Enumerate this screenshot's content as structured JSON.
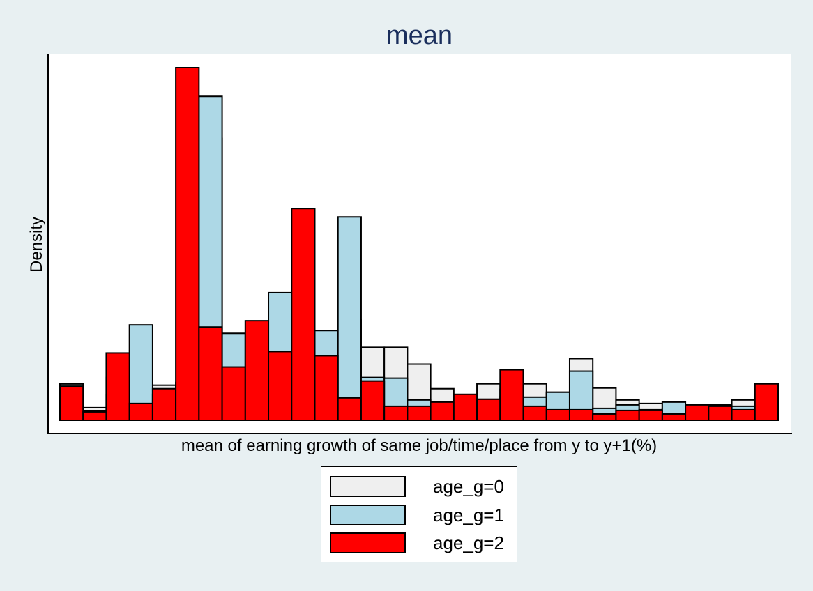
{
  "chart_data": {
    "type": "bar",
    "title": "mean",
    "xlabel": "mean of earning growth of same job/time/place from y to y+1(%)",
    "ylabel": "Density",
    "bins": 31,
    "ylim": [
      0,
      1
    ],
    "grid": false,
    "legend_position": "bottom",
    "series": [
      {
        "name": "age_g=0",
        "color": "#efefef",
        "values": [
          0.104,
          0.036,
          0.072,
          0.072,
          0.1,
          0.09,
          0.804,
          0.204,
          0.128,
          0.134,
          0.168,
          0.116,
          0.286,
          0.208,
          0.208,
          0.16,
          0.09,
          0.068,
          0.104,
          0.088,
          0.104,
          0.08,
          0.176,
          0.092,
          0.058,
          0.048,
          0.032,
          0.034,
          0.044,
          0.058,
          0.08
        ]
      },
      {
        "name": "age_g=1",
        "color": "#add8e6",
        "values": [
          0.1,
          0.026,
          0.122,
          0.272,
          0.074,
          0.108,
          0.924,
          0.248,
          0.144,
          0.364,
          0.238,
          0.256,
          0.58,
          0.122,
          0.12,
          0.058,
          0.038,
          0.072,
          0.06,
          0.068,
          0.066,
          0.08,
          0.14,
          0.034,
          0.044,
          0.03,
          0.052,
          0.032,
          0.042,
          0.04,
          0.076
        ]
      },
      {
        "name": "age_g=2",
        "color": "#ff0000",
        "values": [
          0.096,
          0.024,
          0.192,
          0.048,
          0.09,
          1.006,
          0.266,
          0.152,
          0.284,
          0.196,
          0.604,
          0.184,
          0.064,
          0.112,
          0.04,
          0.04,
          0.052,
          0.074,
          0.06,
          0.144,
          0.04,
          0.03,
          0.03,
          0.018,
          0.028,
          0.028,
          0.018,
          0.044,
          0.04,
          0.03,
          0.104
        ]
      }
    ]
  }
}
